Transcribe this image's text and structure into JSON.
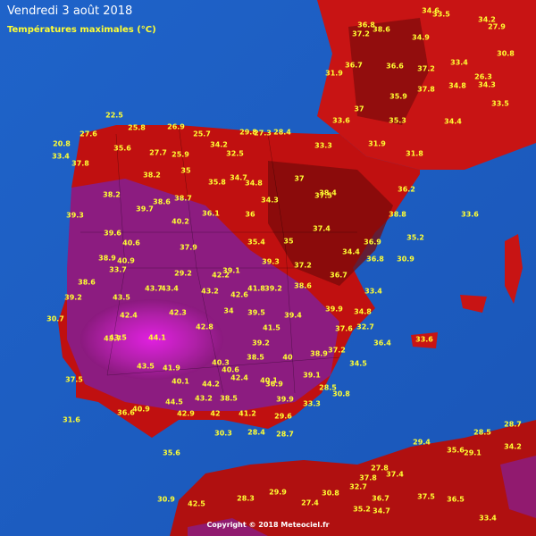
{
  "header": {
    "title": "Vendredi 3 août 2018",
    "subtitle": "Températures maximales (°C)"
  },
  "footer": "Copyright © 2018 Meteociel.fr",
  "temperatures": [
    36.8,
    34.6,
    33.5,
    34.2,
    27.9,
    37.2,
    38.6,
    34.9,
    30.8,
    31.9,
    36.7,
    36.6,
    37.2,
    33.4,
    26.3,
    35.9,
    37.8,
    34.8,
    34.3,
    33.5,
    33.6,
    37,
    35.3,
    34.4,
    22.5,
    25.8,
    26.9,
    27.3,
    25.7,
    29.8,
    28.4,
    33.3,
    20.8,
    27.6,
    35.6,
    27.7,
    25.9,
    34.2,
    32.5,
    31.9,
    33.4,
    37.8,
    38.2,
    35,
    34.7,
    36.2,
    31.8,
    39.3,
    38.2,
    39.7,
    38.6,
    38.7,
    35.8,
    34.8,
    37,
    37.5,
    38.8,
    33.6,
    39.6,
    40.2,
    36,
    34.3,
    36.9,
    36.1,
    38.4,
    40.6,
    37.9,
    35.4,
    35,
    37.4,
    35.2,
    36.8,
    38.9,
    40.9,
    39.1,
    39.3,
    37.2,
    34.4,
    30.9,
    33.7,
    29.2,
    42.2,
    41.8,
    38.6,
    36.7,
    33.4,
    38.6,
    39.2,
    43.5,
    43.7,
    43.4,
    43.2,
    42.6,
    39.2,
    34.8,
    30.7,
    42.4,
    42.3,
    34,
    39.5,
    39.4,
    39.9,
    32.7,
    43.5,
    44.1,
    42.8,
    43.7,
    39.2,
    41.5,
    37.6,
    36.4,
    33.6,
    38.9,
    40.3,
    38.5,
    37.2,
    34.5,
    37.5,
    43.5,
    41.9,
    40.1,
    40.6,
    42.4,
    36.9,
    39.1,
    44.2,
    40.1,
    39.9,
    33.3,
    44.5,
    43.2,
    38.5,
    28.5,
    30.8,
    40.9,
    36.6,
    42.9,
    42,
    41.2,
    29.6,
    31.6,
    28.7,
    35.6,
    30.3,
    28.4,
    28.7,
    28.5,
    34.2,
    37.8,
    27.8,
    37.4,
    35.6,
    29.1,
    29.4,
    32.7,
    36.7,
    37.5,
    36.5,
    30.9,
    42.5,
    28.3,
    29.9,
    27.4,
    30.8,
    35.2,
    34.7,
    33.4,
    40
  ]
}
